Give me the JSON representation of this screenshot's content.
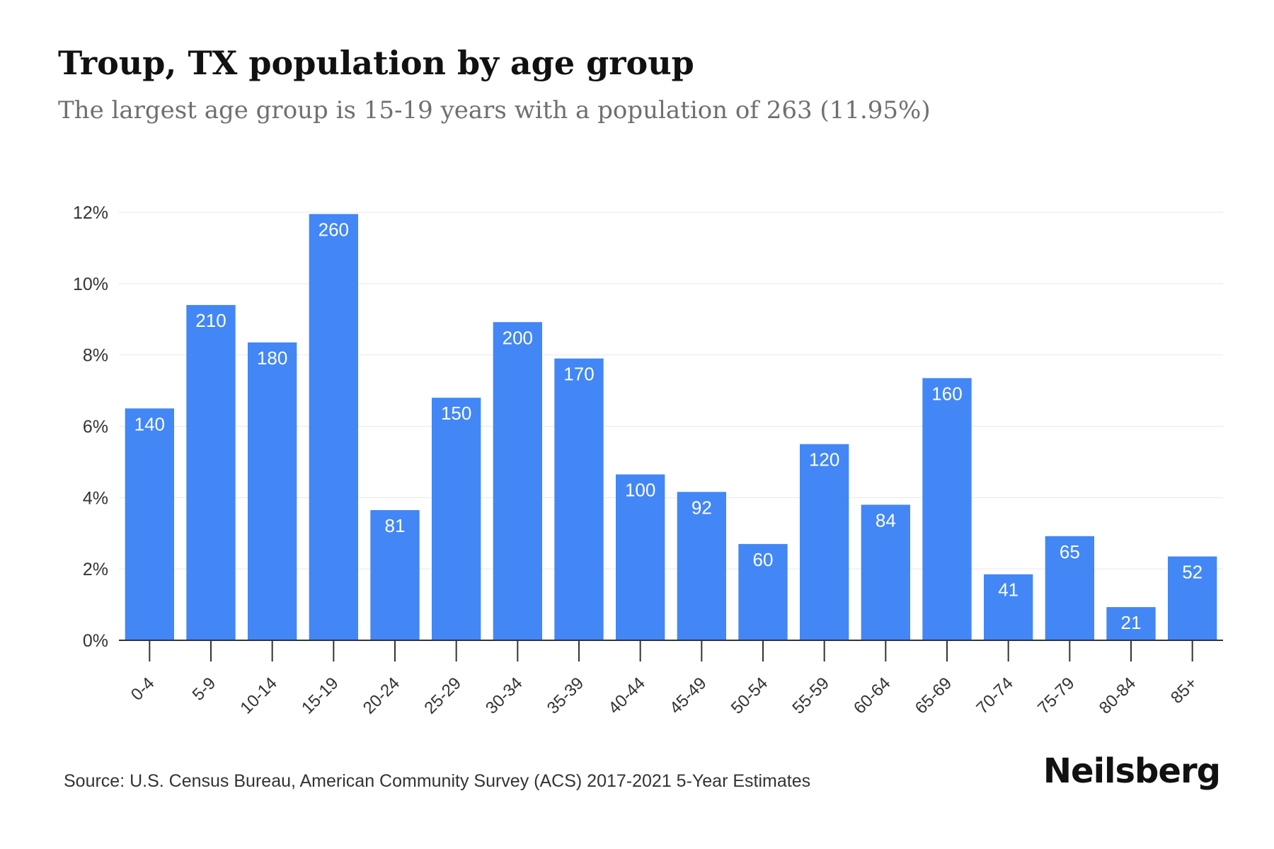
{
  "title": "Troup, TX population by age group",
  "subtitle": "The largest age group is 15-19 years with a population of 263 (11.95%)",
  "source": "Source: U.S. Census Bureau, American Community Survey (ACS) 2017-2021 5-Year Estimates",
  "brand": "Neilsberg",
  "colors": {
    "bar": "#4287f5",
    "grid": "#e8e8e8",
    "axis": "#333333",
    "bar_label": "#ffffff",
    "tick_label": "#333333"
  },
  "chart_data": {
    "type": "bar",
    "title": "Troup, TX population by age group",
    "subtitle": "The largest age group is 15-19 years with a population of 263 (11.95%)",
    "categories": [
      "0-4",
      "5-9",
      "10-14",
      "15-19",
      "20-24",
      "25-29",
      "30-34",
      "35-39",
      "40-44",
      "45-49",
      "50-54",
      "55-59",
      "60-64",
      "65-69",
      "70-74",
      "75-79",
      "80-84",
      "85+"
    ],
    "series": [
      {
        "values": [
          6.5,
          9.4,
          8.35,
          11.95,
          3.65,
          6.8,
          8.92,
          7.9,
          4.65,
          4.16,
          2.7,
          5.5,
          3.8,
          7.35,
          1.85,
          2.92,
          0.93,
          2.35
        ],
        "labels": [
          "140",
          "210",
          "180",
          "260",
          "81",
          "150",
          "200",
          "170",
          "100",
          "92",
          "60",
          "120",
          "84",
          "160",
          "41",
          "65",
          "21",
          "52"
        ]
      }
    ],
    "yticks": [
      "0%",
      "2%",
      "4%",
      "6%",
      "8%",
      "10%",
      "12%"
    ],
    "ylim": [
      0,
      12
    ],
    "xlabel": "",
    "ylabel": "",
    "grid": true
  }
}
